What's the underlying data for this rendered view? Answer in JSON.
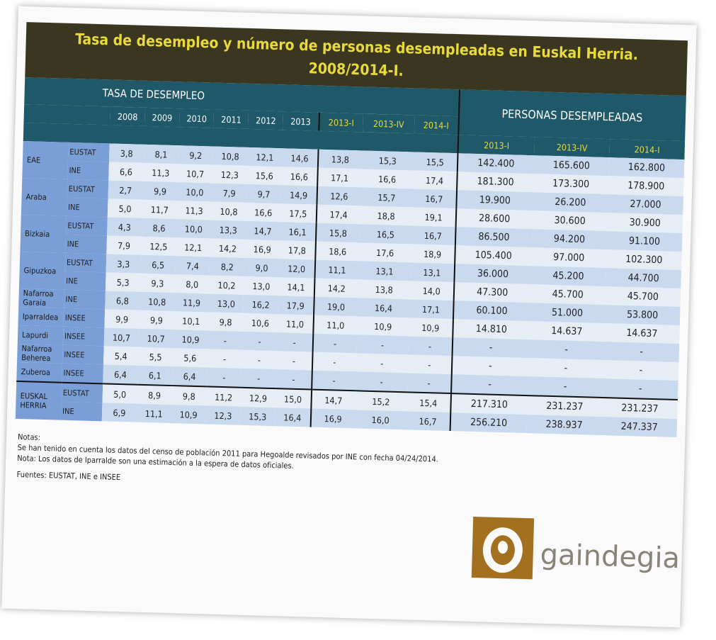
{
  "header": {
    "title_line1": "Tasa de desempleo y número de personas desempleadas en Euskal Herria.",
    "title_line2": "2008/2014-I."
  },
  "table": {
    "rate_section": "TASA DE DESEMPLEO",
    "persons_section": "PERSONAS DESEMPLEADAS",
    "year_columns": [
      "2008",
      "2009",
      "2010",
      "2011",
      "2012",
      "2013"
    ],
    "rate_quarter_columns": [
      "2013-I",
      "2013-IV",
      "2014-I"
    ],
    "persons_quarter_columns": [
      "2013-I",
      "2013-IV",
      "2014-I"
    ],
    "rows": [
      {
        "region": "EAE",
        "source": "EUSTAT",
        "rates": [
          "3,8",
          "8,1",
          "9,2",
          "10,8",
          "12,1",
          "14,6",
          "13,8",
          "15,3",
          "15,5"
        ],
        "persons": [
          "142.400",
          "165.600",
          "162.800"
        ]
      },
      {
        "source": "INE",
        "rates": [
          "6,6",
          "11,3",
          "10,7",
          "12,3",
          "15,6",
          "16,6",
          "17,1",
          "16,6",
          "17,4"
        ],
        "persons": [
          "181.300",
          "173.300",
          "178.900"
        ]
      },
      {
        "region": "Araba",
        "source": "EUSTAT",
        "rates": [
          "2,7",
          "9,9",
          "10,0",
          "7,9",
          "9,7",
          "14,9",
          "12,6",
          "15,7",
          "16,7"
        ],
        "persons": [
          "19.900",
          "26.200",
          "27.000"
        ]
      },
      {
        "source": "INE",
        "rates": [
          "5,0",
          "11,7",
          "11,3",
          "10,8",
          "16,6",
          "17,5",
          "17,4",
          "18,8",
          "19,1"
        ],
        "persons": [
          "28.600",
          "30.600",
          "30.900"
        ]
      },
      {
        "region": "Bizkaia",
        "source": "EUSTAT",
        "rates": [
          "4,3",
          "8,6",
          "10,0",
          "13,3",
          "14,7",
          "16,1",
          "15,8",
          "16,5",
          "16,7"
        ],
        "persons": [
          "86.500",
          "94.200",
          "91.100"
        ]
      },
      {
        "source": "INE",
        "rates": [
          "7,9",
          "12,5",
          "12,1",
          "14,2",
          "16,9",
          "17,8",
          "18,6",
          "17,6",
          "18,9"
        ],
        "persons": [
          "105.400",
          "97.000",
          "102.300"
        ]
      },
      {
        "region": "Gipuzkoa",
        "source": "EUSTAT",
        "rates": [
          "3,3",
          "6,5",
          "7,4",
          "8,2",
          "9,0",
          "12,0",
          "11,1",
          "13,1",
          "13,1"
        ],
        "persons": [
          "36.000",
          "45.200",
          "44.700"
        ]
      },
      {
        "source": "INE",
        "rates": [
          "5,3",
          "9,3",
          "8,0",
          "10,2",
          "13,0",
          "14,1",
          "14,2",
          "13,8",
          "14,0"
        ],
        "persons": [
          "47.300",
          "45.700",
          "45.700"
        ]
      },
      {
        "region": "Nafarroa Garaia",
        "source": "INE",
        "rates": [
          "6,8",
          "10,8",
          "11,9",
          "13,0",
          "16,2",
          "17,9",
          "19,0",
          "16,4",
          "17,1"
        ],
        "persons": [
          "60.100",
          "51.000",
          "53.800"
        ]
      },
      {
        "region": "Iparraldea",
        "source": "INSEE",
        "rates": [
          "9,9",
          "9,9",
          "10,1",
          "9,8",
          "10,6",
          "11,0",
          "11,0",
          "10,9",
          "10,9"
        ],
        "persons": [
          "14.810",
          "14.637",
          "14.637"
        ]
      },
      {
        "region": "Lapurdi",
        "source": "INSEE",
        "rates": [
          "10,7",
          "10,7",
          "10,9",
          "-",
          "-",
          "-",
          "-",
          "-",
          "-"
        ],
        "persons": [
          "-",
          "-",
          "-"
        ]
      },
      {
        "region": "Nafarroa Beherea",
        "source": "INSEE",
        "rates": [
          "5,4",
          "5,5",
          "5,6",
          "-",
          "-",
          "-",
          "-",
          "-",
          "-"
        ],
        "persons": [
          "-",
          "-",
          "-"
        ]
      },
      {
        "region": "Zuberoa",
        "source": "INSEE",
        "rates": [
          "6,4",
          "6,1",
          "6,4",
          "-",
          "-",
          "-",
          "-",
          "-",
          "-"
        ],
        "persons": [
          "-",
          "-",
          "-"
        ]
      },
      {
        "region": "EUSKAL HERRIA",
        "source": "EUSTAT",
        "rates": [
          "5,0",
          "8,9",
          "9,8",
          "11,2",
          "12,9",
          "15,0",
          "14,7",
          "15,2",
          "15,4"
        ],
        "persons": [
          "217.310",
          "231.237",
          "231.237"
        ]
      },
      {
        "source": "INE",
        "rates": [
          "6,9",
          "11,1",
          "10,9",
          "12,3",
          "15,3",
          "16,4",
          "16,9",
          "16,0",
          "16,7"
        ],
        "persons": [
          "256.210",
          "238.937",
          "247.337"
        ]
      }
    ]
  },
  "notes": {
    "heading": "Notas:",
    "line1": "Se han tenido en cuenta los datos del censo de población 2011 para Hegoalde revisados por INE  con fecha 04/24/2014.",
    "line2": "Nota: Los datos de Iparralde son una estimación a la espera de datos oficiales.",
    "sources": "Fuentes: EUSTAT, INE e INSEE"
  },
  "logo": {
    "text": "gaindegia"
  }
}
